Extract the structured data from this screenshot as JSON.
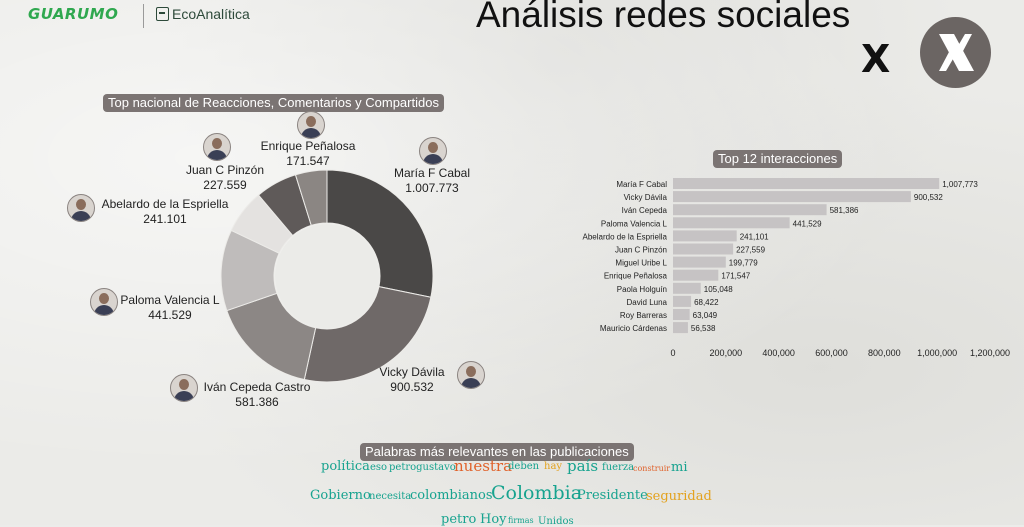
{
  "header": {
    "logo_left": "GUARUMO",
    "logo_right": "EcoAnalítica",
    "title": "Análisis redes sociales",
    "platform_letter": "X"
  },
  "colors": {
    "label_bg": "#7b7473",
    "bar": "#c6c3c4",
    "donut": [
      "#4a4847",
      "#6f6968",
      "#8c8785",
      "#bfbcbb",
      "#e4e2e0",
      "#5f5a59",
      "#8b8683",
      "#d6d3d0"
    ]
  },
  "chart_data": [
    {
      "type": "donut",
      "title": "Top nacional de Reacciones, Comentarios y Compartidos",
      "slices": [
        {
          "label": "María F Cabal",
          "value": 1007773,
          "display": "1.007.773"
        },
        {
          "label": "Vicky Dávila",
          "value": 900532,
          "display": "900.532"
        },
        {
          "label": "Iván Cepeda Castro",
          "value": 581386,
          "display": "581.386"
        },
        {
          "label": "Paloma Valencia L",
          "value": 441529,
          "display": "441.529"
        },
        {
          "label": "Abelardo de la Espriella",
          "value": 241101,
          "display": "241.101"
        },
        {
          "label": "Juan C Pinzón",
          "value": 227559,
          "display": "227.559"
        },
        {
          "label": "Enrique Peñalosa",
          "value": 171547,
          "display": "171.547"
        }
      ]
    },
    {
      "type": "bar",
      "orientation": "horizontal",
      "title": "Top 12 interacciones",
      "categories": [
        "María F Cabal",
        "Vicky Dávila",
        "Iván Cepeda",
        "Paloma Valencia L",
        "Abelardo de la Espriella",
        "Juan C Pinzón",
        "Miguel Uribe L",
        "Enrique Peñalosa",
        "Paola Holguín",
        "David Luna",
        "Roy Barreras",
        "Mauricio Cárdenas"
      ],
      "values": [
        1007773,
        900532,
        581386,
        441529,
        241101,
        227559,
        199779,
        171547,
        105048,
        68422,
        63049,
        56538
      ],
      "value_labels": [
        "1,007,773",
        "900,532",
        "581,386",
        "441,529",
        "241,101",
        "227,559",
        "199,779",
        "171,547",
        "105,048",
        "68,422",
        "63,049",
        "56,538"
      ],
      "xlim": [
        0,
        1200000
      ],
      "xticks": [
        0,
        200000,
        400000,
        600000,
        800000,
        1000000,
        1200000
      ],
      "xtick_labels": [
        "0",
        "200,000",
        "400,000",
        "600,000",
        "800,000",
        "1,000,000",
        "1,200,000"
      ]
    }
  ],
  "wordcloud": {
    "title": "Palabras más relevantes en las publicaciones",
    "words": [
      {
        "text": "política",
        "color": "#17a38f",
        "weight": 2
      },
      {
        "text": "eso",
        "color": "#17a38f",
        "weight": 1
      },
      {
        "text": "petrogustavo",
        "color": "#17a38f",
        "weight": 1
      },
      {
        "text": "nuestra",
        "color": "#e0622b",
        "weight": 3
      },
      {
        "text": "deben",
        "color": "#17a38f",
        "weight": 1
      },
      {
        "text": "hay",
        "color": "#e3a21e",
        "weight": 1
      },
      {
        "text": "país",
        "color": "#17a38f",
        "weight": 3
      },
      {
        "text": "fuerza",
        "color": "#17a38f",
        "weight": 1
      },
      {
        "text": "construir",
        "color": "#e0622b",
        "weight": 0
      },
      {
        "text": "mi",
        "color": "#17a38f",
        "weight": 2
      },
      {
        "text": "Gobierno",
        "color": "#17a38f",
        "weight": 2
      },
      {
        "text": "necesita",
        "color": "#17a38f",
        "weight": 1
      },
      {
        "text": "colombianos",
        "color": "#17a38f",
        "weight": 2
      },
      {
        "text": "Colombia",
        "color": "#17a38f",
        "weight": 4
      },
      {
        "text": "Presidente",
        "color": "#17a38f",
        "weight": 2
      },
      {
        "text": "seguridad",
        "color": "#e3a21e",
        "weight": 2
      },
      {
        "text": "petro",
        "color": "#17a38f",
        "weight": 2
      },
      {
        "text": "Hoy",
        "color": "#17a38f",
        "weight": 2
      },
      {
        "text": "firmas",
        "color": "#17a38f",
        "weight": 0
      },
      {
        "text": "Unidos",
        "color": "#17a38f",
        "weight": 1
      }
    ]
  }
}
